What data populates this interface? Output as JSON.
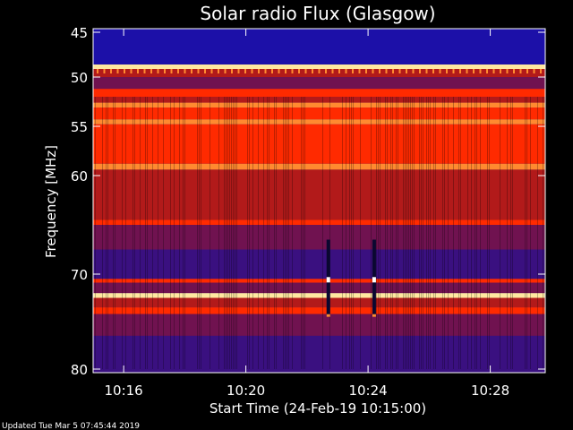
{
  "chart_data": {
    "type": "heatmap",
    "title": "Solar radio Flux (Glasgow)",
    "xlabel": "Start Time (24-Feb-19 10:15:00)",
    "ylabel": "Frequency [MHz]",
    "x_ticks": [
      "10:16",
      "10:20",
      "10:24",
      "10:28"
    ],
    "x_tick_minutes": [
      1,
      5,
      9,
      13
    ],
    "xlim_minutes": [
      0,
      14.8
    ],
    "y_ticks": [
      45,
      50,
      55,
      60,
      70,
      80
    ],
    "ylim": [
      80,
      44.5
    ],
    "frequency_scale": "nonlinear (log-like), increasing downward",
    "colormap": [
      "#1c10a8",
      "#3a1080",
      "#701250",
      "#b21a1a",
      "#ff2a00",
      "#ff8a30",
      "#ffe8a0"
    ],
    "bands": [
      {
        "from": 44.5,
        "to": 48.6,
        "level": 0
      },
      {
        "from": 48.6,
        "to": 49.1,
        "level": 6
      },
      {
        "from": 49.1,
        "to": 50.0,
        "level": 3
      },
      {
        "from": 50.0,
        "to": 51.2,
        "level": 2
      },
      {
        "from": 51.2,
        "to": 52.0,
        "level": 4
      },
      {
        "from": 52.0,
        "to": 52.6,
        "level": 3
      },
      {
        "from": 52.6,
        "to": 53.1,
        "level": 5
      },
      {
        "from": 53.1,
        "to": 54.3,
        "level": 4
      },
      {
        "from": 54.3,
        "to": 54.8,
        "level": 5
      },
      {
        "from": 54.8,
        "to": 58.8,
        "level": 4
      },
      {
        "from": 58.8,
        "to": 59.4,
        "level": 5
      },
      {
        "from": 59.4,
        "to": 61.5,
        "level": 3
      },
      {
        "from": 61.5,
        "to": 64.5,
        "level": 3
      },
      {
        "from": 64.5,
        "to": 65.0,
        "level": 4
      },
      {
        "from": 65.0,
        "to": 67.5,
        "level": 2
      },
      {
        "from": 67.5,
        "to": 70.5,
        "level": 1
      },
      {
        "from": 70.5,
        "to": 70.9,
        "level": 4
      },
      {
        "from": 70.9,
        "to": 72.0,
        "level": 2
      },
      {
        "from": 72.0,
        "to": 72.5,
        "level": 6
      },
      {
        "from": 72.5,
        "to": 73.5,
        "level": 3
      },
      {
        "from": 73.5,
        "to": 74.2,
        "level": 4
      },
      {
        "from": 74.2,
        "to": 76.5,
        "level": 2
      },
      {
        "from": 76.5,
        "to": 80.0,
        "level": 1
      }
    ],
    "bursts": [
      {
        "minute": 7.7,
        "from": 66.5,
        "to": 74.5
      },
      {
        "minute": 9.2,
        "from": 66.5,
        "to": 74.5
      }
    ]
  },
  "footer": "Updated Tue Mar  5 07:45:44 2019"
}
